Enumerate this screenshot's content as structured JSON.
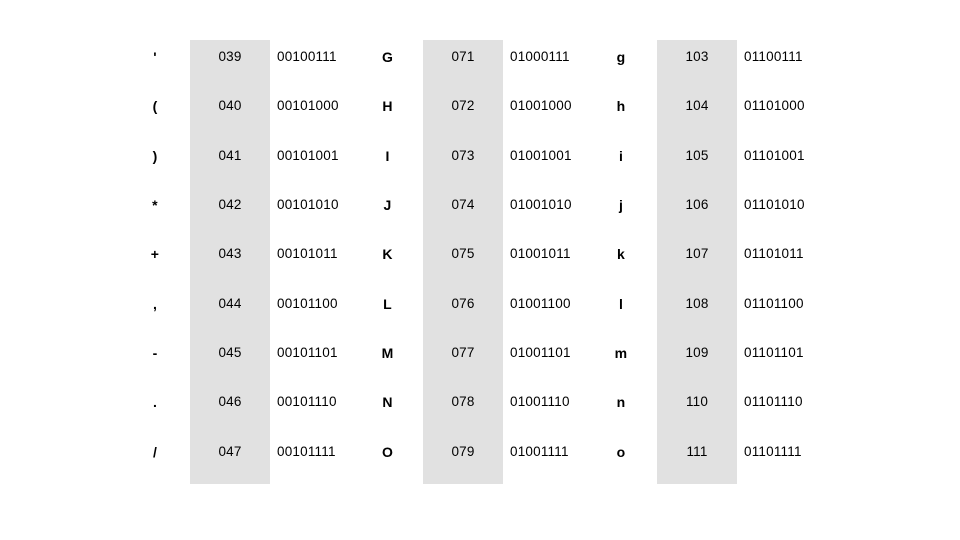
{
  "colors": {
    "background": "#ffffff",
    "shaded_column": "#e1e1e1",
    "text": "#000000"
  },
  "table": {
    "column_roles": [
      "character",
      "decimal",
      "binary",
      "character",
      "decimal",
      "binary",
      "character",
      "decimal",
      "binary"
    ],
    "rows": [
      {
        "cells": [
          "'",
          "039",
          "00100111",
          "G",
          "071",
          "01000111",
          "g",
          "103",
          "01100111"
        ]
      },
      {
        "cells": [
          "(",
          "040",
          "00101000",
          "H",
          "072",
          "01001000",
          "h",
          "104",
          "01101000"
        ]
      },
      {
        "cells": [
          ")",
          "041",
          "00101001",
          "I",
          "073",
          "01001001",
          "i",
          "105",
          "01101001"
        ]
      },
      {
        "cells": [
          "*",
          "042",
          "00101010",
          "J",
          "074",
          "01001010",
          "j",
          "106",
          "01101010"
        ]
      },
      {
        "cells": [
          "+",
          "043",
          "00101011",
          "K",
          "075",
          "01001011",
          "k",
          "107",
          "01101011"
        ]
      },
      {
        "cells": [
          ",",
          "044",
          "00101100",
          "L",
          "076",
          "01001100",
          "l",
          "108",
          "01101100"
        ]
      },
      {
        "cells": [
          "-",
          "045",
          "00101101",
          "M",
          "077",
          "01001101",
          "m",
          "109",
          "01101101"
        ]
      },
      {
        "cells": [
          ".",
          "046",
          "00101110",
          "N",
          "078",
          "01001110",
          "n",
          "110",
          "01101110"
        ]
      },
      {
        "cells": [
          "/",
          "047",
          "00101111",
          "O",
          "079",
          "01001111",
          "o",
          "111",
          "01101111"
        ]
      }
    ]
  }
}
